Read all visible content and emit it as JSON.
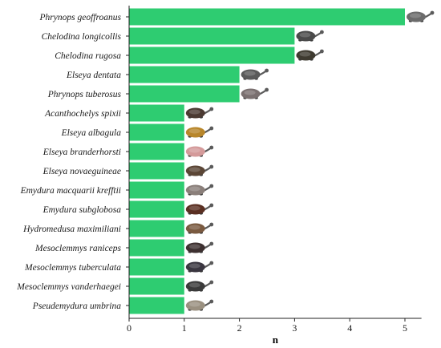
{
  "chart_data": {
    "type": "bar",
    "orientation": "horizontal",
    "categories": [
      "Phrynops geoffroanus",
      "Chelodina longicollis",
      "Chelodina rugosa",
      "Elseya dentata",
      "Phrynops tuberosus",
      "Acanthochelys spixii",
      "Elseya albagula",
      "Elseya branderhorsti",
      "Elseya novaeguineae",
      "Emydura macquarii krefftii",
      "Emydura subglobosa",
      "Hydromedusa maximiliani",
      "Mesoclemmys raniceps",
      "Mesoclemmys tuberculata",
      "Mesoclemmys vanderhaegei",
      "Pseudemydura umbrina"
    ],
    "values": [
      5,
      3,
      3,
      2,
      2,
      1,
      1,
      1,
      1,
      1,
      1,
      1,
      1,
      1,
      1,
      1
    ],
    "xlabel": "n",
    "ylabel": "",
    "xlim": [
      0,
      5.3
    ],
    "xticks": [
      0,
      1,
      2,
      3,
      4,
      5
    ],
    "grid": false,
    "bar_color": "#2ecc71",
    "axis_color": "#222222",
    "bar_end_icon": "turtle-icon"
  }
}
